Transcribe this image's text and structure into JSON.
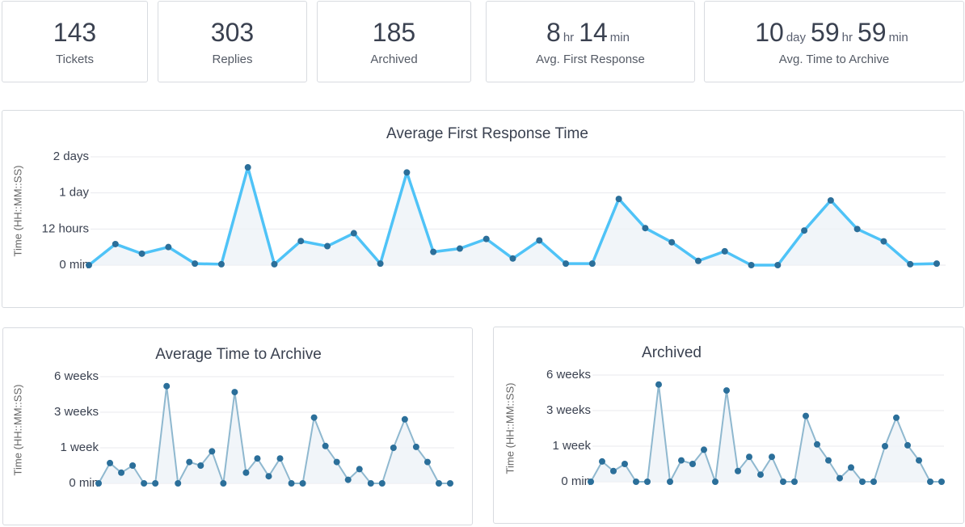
{
  "stats": [
    {
      "value": 143,
      "label": "Tickets"
    },
    {
      "value": 303,
      "label": "Replies"
    },
    {
      "value": 185,
      "label": "Archived"
    },
    {
      "parts": [
        {
          "value": 8,
          "unit": "hr"
        },
        {
          "value": 14,
          "unit": "min"
        }
      ],
      "label": "Avg. First Response"
    },
    {
      "parts": [
        {
          "value": 10,
          "unit": "day"
        },
        {
          "value": 59,
          "unit": "hr"
        },
        {
          "value": 59,
          "unit": "min"
        }
      ],
      "label": "Avg. Time to Archive"
    }
  ],
  "chart_data": [
    {
      "type": "line",
      "title": "Average First Response Time",
      "y_label": "Time (HH::MM::SS)",
      "ylim": [
        0,
        48
      ],
      "yticks": [
        {
          "value": 0,
          "label": "0 min"
        },
        {
          "value": 12,
          "label": "12 hours"
        },
        {
          "value": 24,
          "label": "1 day"
        },
        {
          "value": 48,
          "label": "2 days"
        }
      ],
      "grid": true,
      "series": [
        {
          "color": "#4fc3f7",
          "marker_color": "#2b6f9a",
          "values": [
            0,
            7,
            3.8,
            6,
            0.5,
            0.3,
            41,
            0.3,
            8,
            6.3,
            10.6,
            0.5,
            37.6,
            4.4,
            5.5,
            8.7,
            2.2,
            8.2,
            0.5,
            0.5,
            22,
            12.3,
            7.6,
            1.4,
            4.6,
            0,
            0,
            11.5,
            21.5,
            12,
            7.9,
            0.3,
            0.5
          ]
        }
      ]
    },
    {
      "type": "line",
      "title": "Average Time to Archive",
      "y_label": "Time (HH::MM::SS)",
      "ylim": [
        0,
        6
      ],
      "yticks": [
        {
          "value": 0,
          "label": "0 min"
        },
        {
          "value": 1,
          "label": "1 week"
        },
        {
          "value": 3,
          "label": "3 weeks"
        },
        {
          "value": 6,
          "label": "6 weeks"
        }
      ],
      "grid": true,
      "series": [
        {
          "color": "#8fb8cf",
          "marker_color": "#2b6f9a",
          "values": [
            0,
            0.57,
            0.3,
            0.5,
            0,
            0,
            5.2,
            0,
            0.6,
            0.5,
            0.9,
            0,
            4.7,
            0.3,
            0.7,
            0.2,
            0.7,
            0,
            0,
            2.7,
            1.1,
            0.6,
            0.1,
            0.4,
            0,
            0,
            1,
            2.6,
            1.05,
            0.6,
            0,
            0
          ]
        }
      ]
    },
    {
      "type": "line",
      "title": "Archived",
      "y_label": "Time (HH::MM::SS)",
      "ylim": [
        0,
        6
      ],
      "yticks": [
        {
          "value": 0,
          "label": "0 min"
        },
        {
          "value": 1,
          "label": "1 week"
        },
        {
          "value": 3,
          "label": "3 weeks"
        },
        {
          "value": 6,
          "label": "6 weeks"
        }
      ],
      "grid": true,
      "series": [
        {
          "color": "#8fb8cf",
          "marker_color": "#2b6f9a",
          "values": [
            0,
            0.57,
            0.3,
            0.5,
            0,
            0,
            5.2,
            0,
            0.6,
            0.5,
            0.9,
            0,
            4.7,
            0.3,
            0.7,
            0.2,
            0.7,
            0,
            0,
            2.7,
            1.1,
            0.6,
            0.1,
            0.4,
            0,
            0,
            1,
            2.6,
            1.05,
            0.6,
            0,
            0
          ]
        }
      ]
    }
  ]
}
